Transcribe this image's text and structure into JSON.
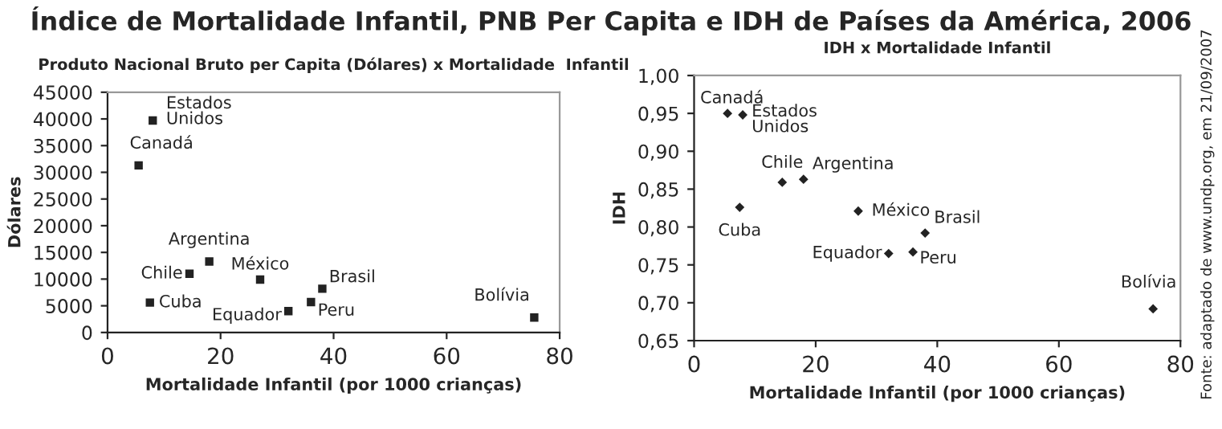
{
  "chart_data": [
    {
      "type": "scatter",
      "title": "Índice de Mortalidade Infantil, PNB Per Capita e IDH de Países da América, 2006",
      "subtitle": "Produto Nacional Bruto per Capita (Dólares) x Mortalidade  Infantil",
      "xlabel": "Mortalidade Infantil (por 1000 crianças)",
      "ylabel": "Dólares",
      "x": [
        5.5,
        8,
        14.5,
        18,
        7.5,
        27,
        32,
        36,
        38,
        75.5
      ],
      "series": [
        {
          "color": "#222222",
          "values": [
            31300,
            39700,
            11000,
            13300,
            5600,
            9900,
            4000,
            5700,
            8200,
            2800
          ]
        }
      ],
      "marker": "square",
      "grid": false,
      "legend": false,
      "xlim": [
        0,
        80
      ],
      "xticks": [
        0,
        20,
        40,
        60,
        80
      ],
      "ylim": [
        0,
        45000
      ],
      "yticks": [
        0,
        5000,
        10000,
        15000,
        20000,
        25000,
        30000,
        35000,
        40000,
        45000
      ],
      "annotations": [
        {
          "text": "Canadá",
          "x": 5.5,
          "y": 31300
        },
        {
          "text": "Estados\nUnidos",
          "x": 8,
          "y": 39700
        },
        {
          "text": "Chile",
          "x": 14.5,
          "y": 11000
        },
        {
          "text": "Argentina",
          "x": 18,
          "y": 13300
        },
        {
          "text": "Cuba",
          "x": 7.5,
          "y": 5600
        },
        {
          "text": "México",
          "x": 27,
          "y": 9900
        },
        {
          "text": "Equador",
          "x": 32,
          "y": 4000
        },
        {
          "text": "Peru",
          "x": 36,
          "y": 5700
        },
        {
          "text": "Brasil",
          "x": 38,
          "y": 8200
        },
        {
          "text": "Bolívia",
          "x": 75.5,
          "y": 2800
        }
      ]
    },
    {
      "type": "scatter",
      "subtitle": "IDH x Mortalidade Infantil",
      "xlabel": "Mortalidade Infantil (por 1000 crianças)",
      "ylabel": "IDH",
      "x": [
        5.5,
        8,
        14.5,
        18,
        7.5,
        27,
        32,
        36,
        38,
        75.5
      ],
      "series": [
        {
          "color": "#222222",
          "values": [
            0.95,
            0.948,
            0.859,
            0.863,
            0.826,
            0.821,
            0.765,
            0.767,
            0.792,
            0.692
          ]
        }
      ],
      "marker": "diamond",
      "grid": false,
      "legend": false,
      "xlim": [
        0,
        80
      ],
      "xticks": [
        0,
        20,
        40,
        60,
        80
      ],
      "ylim": [
        0.65,
        1.0
      ],
      "yticks": [
        {
          "value": 0.65,
          "label": "0,65"
        },
        {
          "value": 0.7,
          "label": "0,70"
        },
        {
          "value": 0.75,
          "label": "0,75"
        },
        {
          "value": 0.8,
          "label": "0,80"
        },
        {
          "value": 0.85,
          "label": "0,85"
        },
        {
          "value": 0.9,
          "label": "0,90"
        },
        {
          "value": 0.95,
          "label": "0,95"
        },
        {
          "value": 1.0,
          "label": "1,00"
        }
      ],
      "annotations": [
        {
          "text": "Canadá",
          "x": 5.5,
          "y": 0.95
        },
        {
          "text": "Estados\nUnidos",
          "x": 8,
          "y": 0.948
        },
        {
          "text": "Chile",
          "x": 14.5,
          "y": 0.859
        },
        {
          "text": "Argentina",
          "x": 18,
          "y": 0.863
        },
        {
          "text": "Cuba",
          "x": 7.5,
          "y": 0.826
        },
        {
          "text": "México",
          "x": 27,
          "y": 0.821
        },
        {
          "text": "Equador",
          "x": 32,
          "y": 0.765
        },
        {
          "text": "Peru",
          "x": 36,
          "y": 0.767
        },
        {
          "text": "Brasil",
          "x": 38,
          "y": 0.792
        },
        {
          "text": "Bolívia",
          "x": 75.5,
          "y": 0.692
        },
        "Fonte: adaptado de www.undp.org, em 21/09/2007"
      ]
    }
  ]
}
